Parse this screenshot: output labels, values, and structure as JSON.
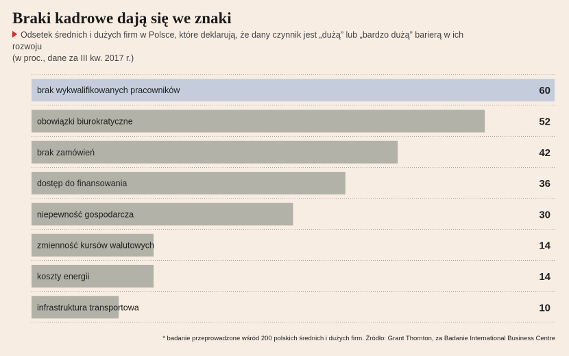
{
  "header": {
    "title": "Braki kadrowe dają się we znaki",
    "subtitle_line1": "Odsetek średnich i dużych firm w Polsce, które deklarują, że dany czynnik jest „dużą” lub „bardzo dużą” barierą w ich rozwoju",
    "subtitle_line2": "(w proc., dane za III kw. 2017 r.)"
  },
  "footnote": "* badanie przeprowadzone wśród 200 polskich średnich i dużych firm. Źródło: Grant Thornton, za Badanie International Business Centre",
  "colors": {
    "background": "#f8ede3",
    "highlight_bar": "#c5cddd",
    "bar": "#b3b2a8",
    "marker": "#d8262f"
  },
  "chart_data": {
    "type": "bar",
    "orientation": "horizontal",
    "categories": [
      "brak wykwalifikowanych pracowników",
      "obowiązki biurokratyczne",
      "brak zamówień",
      "dostęp do finansowania",
      "niepewność gospodarcza",
      "zmienność kursów walutowych",
      "koszty energii",
      "infrastruktura transportowa"
    ],
    "values": [
      60,
      52,
      42,
      36,
      30,
      14,
      14,
      10
    ],
    "highlight_index": 0,
    "xlim": [
      0,
      60
    ],
    "grid": "dotted row separators",
    "legend": "none"
  }
}
